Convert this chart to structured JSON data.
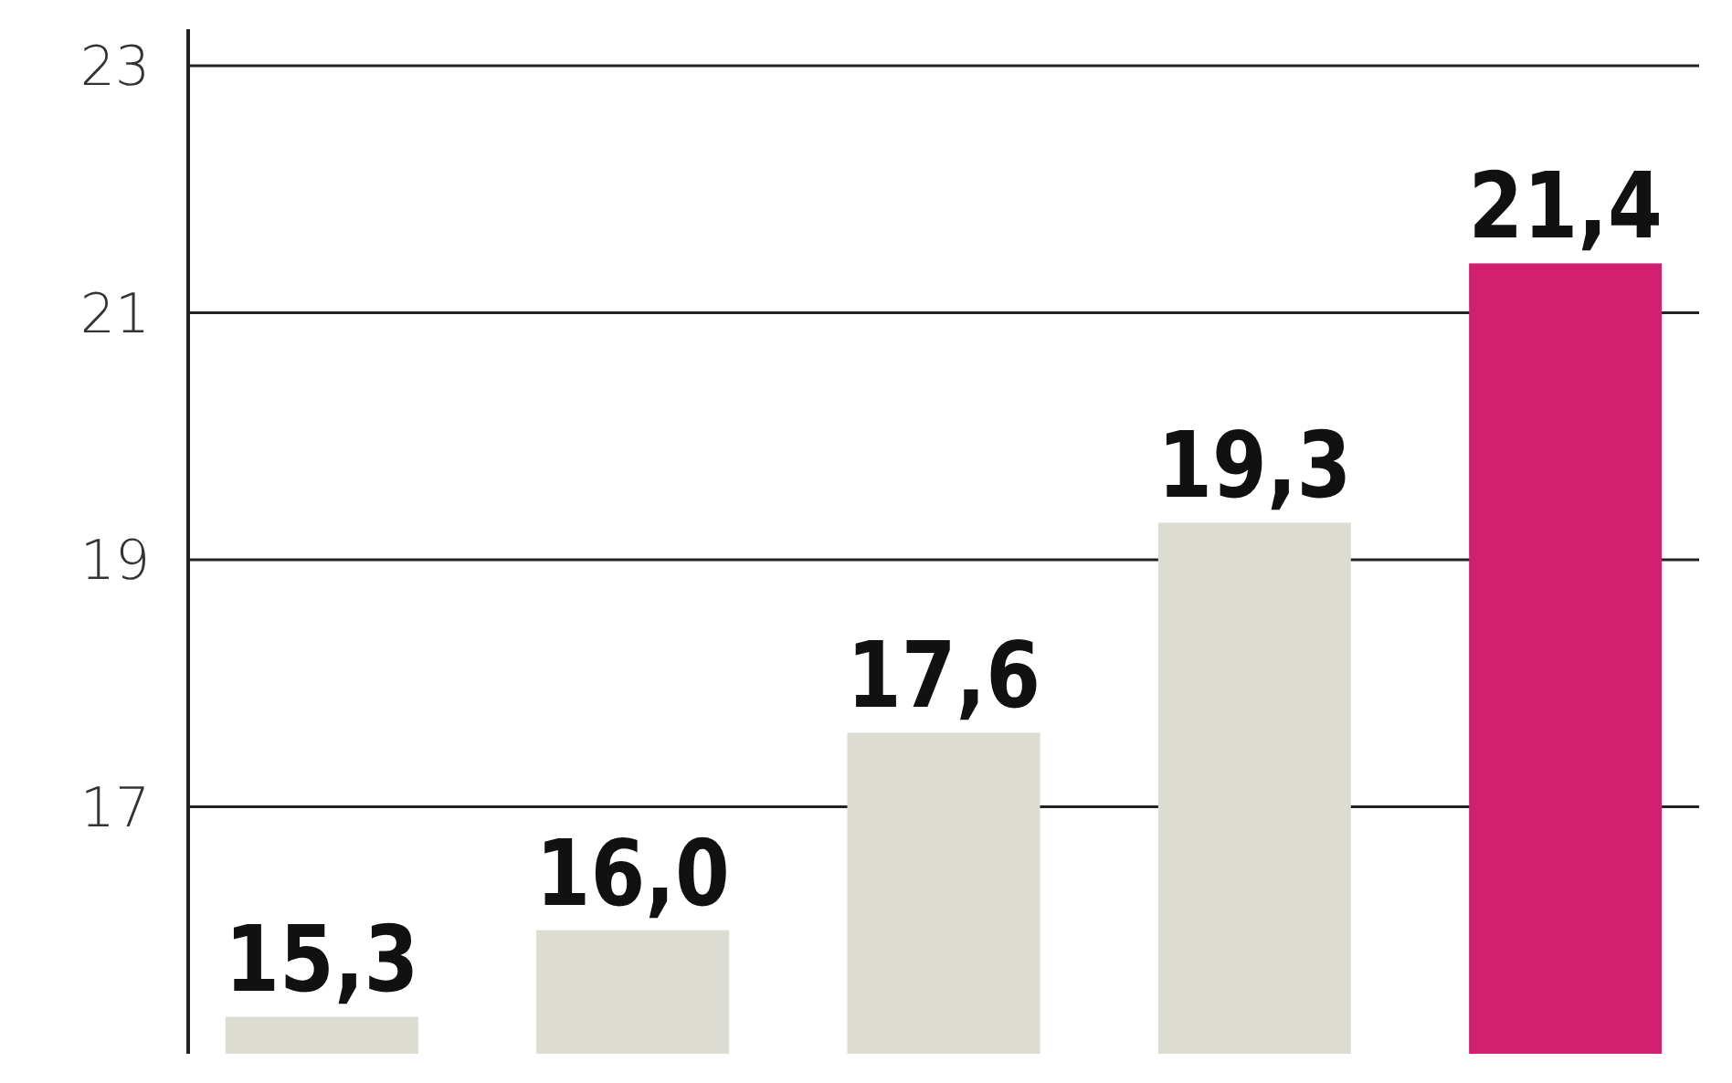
{
  "chart_data": {
    "type": "bar",
    "categories": [
      null,
      null,
      null,
      null,
      null
    ],
    "values": [
      15.3,
      16.0,
      17.6,
      19.3,
      21.4
    ],
    "colors": [
      "#dcdcd2",
      "#dcdcd2",
      "#dcdcd2",
      "#dcdcd2",
      "#d0206f"
    ],
    "value_labels": [
      "15,3",
      "16,0",
      "17,6",
      "19,3",
      "21,4"
    ],
    "ylim": [
      15,
      23
    ],
    "yticks": [
      17,
      19,
      21,
      23
    ],
    "grid": "y",
    "tick_labels": "y"
  }
}
